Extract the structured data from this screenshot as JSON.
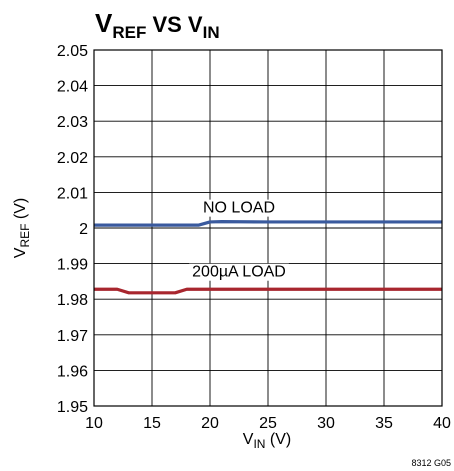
{
  "chart_data": {
    "type": "line",
    "title": {
      "main": "V",
      "sub1": "REF",
      "mid": " VS V",
      "sub2": "IN"
    },
    "xlabel": {
      "main": "V",
      "sub": "IN",
      "suffix": " (V)"
    },
    "ylabel": {
      "main": "V",
      "sub": "REF",
      "suffix": "  (V)"
    },
    "xlim": [
      10,
      40
    ],
    "ylim": [
      1.95,
      2.05
    ],
    "xticks": [
      "10",
      "15",
      "20",
      "25",
      "30",
      "35",
      "40"
    ],
    "yticks": [
      "1.95",
      "1.96",
      "1.97",
      "1.98",
      "1.99",
      "2",
      "2.01",
      "2.02",
      "2.03",
      "2.04",
      "2.05"
    ],
    "grid": true,
    "series": [
      {
        "name": "NO LOAD",
        "color": "#3a5a9e",
        "x": [
          10,
          12,
          14,
          16,
          18,
          19,
          20,
          21,
          25,
          30,
          35,
          40
        ],
        "y": [
          2.0008,
          2.0008,
          2.0008,
          2.0008,
          2.0008,
          2.0008,
          2.0017,
          2.0018,
          2.0017,
          2.0017,
          2.0017,
          2.0017
        ]
      },
      {
        "name": "200µA LOAD",
        "color": "#a8262e",
        "x": [
          10,
          11.5,
          12,
          13,
          14,
          16,
          17,
          18,
          19,
          20,
          25,
          30,
          35,
          40
        ],
        "y": [
          1.9828,
          1.9828,
          1.9828,
          1.9818,
          1.9818,
          1.9818,
          1.9818,
          1.9828,
          1.9828,
          1.9828,
          1.9828,
          1.9828,
          1.9828,
          1.9828
        ]
      }
    ],
    "annotations": [
      {
        "text": "NO LOAD",
        "x": 22.5,
        "y": 2.006
      },
      {
        "text": "200µA LOAD",
        "x": 22.5,
        "y": 1.988
      }
    ],
    "note": "8312 G05"
  }
}
